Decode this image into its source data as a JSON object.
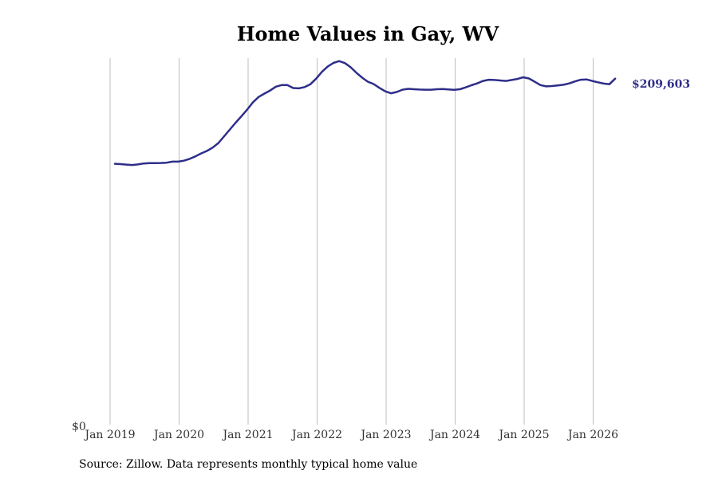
{
  "chart_data": {
    "type": "line",
    "title": "Home Values in Gay, WV",
    "xlabel": "",
    "ylabel": "",
    "y_tick_labels": [
      "$0"
    ],
    "x_tick_labels": [
      "Jan 2019",
      "Jan 2020",
      "Jan 2021",
      "Jan 2022",
      "Jan 2023",
      "Jan 2024",
      "Jan 2025",
      "Jan 2026"
    ],
    "x_tick_years": [
      2019,
      2020,
      2021,
      2022,
      2023,
      2024,
      2025,
      2026
    ],
    "ylim": [
      0,
      222000
    ],
    "grid": "vertical",
    "end_label": "$209,603",
    "line_color": "#2e2e8a",
    "series": [
      {
        "points": [
          [
            "2019-01",
            158000
          ],
          [
            "2019-02",
            157800
          ],
          [
            "2019-03",
            157500
          ],
          [
            "2019-04",
            157300
          ],
          [
            "2019-05",
            157600
          ],
          [
            "2019-06",
            158200
          ],
          [
            "2019-07",
            158400
          ],
          [
            "2019-08",
            158400
          ],
          [
            "2019-09",
            158500
          ],
          [
            "2019-10",
            158700
          ],
          [
            "2019-11",
            159300
          ],
          [
            "2019-12",
            159300
          ],
          [
            "2020-01",
            159900
          ],
          [
            "2020-02",
            161000
          ],
          [
            "2020-03",
            162500
          ],
          [
            "2020-04",
            164300
          ],
          [
            "2020-05",
            165800
          ],
          [
            "2020-06",
            167800
          ],
          [
            "2020-07",
            170600
          ],
          [
            "2020-08",
            174700
          ],
          [
            "2020-09",
            178800
          ],
          [
            "2020-10",
            182900
          ],
          [
            "2020-11",
            186800
          ],
          [
            "2020-12",
            190800
          ],
          [
            "2021-01",
            195200
          ],
          [
            "2021-02",
            198500
          ],
          [
            "2021-03",
            200500
          ],
          [
            "2021-04",
            202400
          ],
          [
            "2021-05",
            204700
          ],
          [
            "2021-06",
            205700
          ],
          [
            "2021-07",
            205700
          ],
          [
            "2021-08",
            203900
          ],
          [
            "2021-09",
            203700
          ],
          [
            "2021-10",
            204500
          ],
          [
            "2021-11",
            206200
          ],
          [
            "2021-12",
            209600
          ],
          [
            "2022-01",
            213700
          ],
          [
            "2022-02",
            216900
          ],
          [
            "2022-03",
            219100
          ],
          [
            "2022-04",
            220200
          ],
          [
            "2022-05",
            219000
          ],
          [
            "2022-06",
            216500
          ],
          [
            "2022-07",
            213100
          ],
          [
            "2022-08",
            210200
          ],
          [
            "2022-09",
            207700
          ],
          [
            "2022-10",
            206300
          ],
          [
            "2022-11",
            204000
          ],
          [
            "2022-12",
            201900
          ],
          [
            "2023-01",
            200700
          ],
          [
            "2023-02",
            201500
          ],
          [
            "2023-03",
            202900
          ],
          [
            "2023-04",
            203400
          ],
          [
            "2023-05",
            203200
          ],
          [
            "2023-06",
            203000
          ],
          [
            "2023-07",
            202900
          ],
          [
            "2023-08",
            202900
          ],
          [
            "2023-09",
            203200
          ],
          [
            "2023-10",
            203300
          ],
          [
            "2023-11",
            203100
          ],
          [
            "2023-12",
            202800
          ],
          [
            "2024-01",
            203200
          ],
          [
            "2024-02",
            204300
          ],
          [
            "2024-03",
            205600
          ],
          [
            "2024-04",
            206700
          ],
          [
            "2024-05",
            208200
          ],
          [
            "2024-06",
            208900
          ],
          [
            "2024-07",
            208800
          ],
          [
            "2024-08",
            208500
          ],
          [
            "2024-09",
            208200
          ],
          [
            "2024-10",
            208800
          ],
          [
            "2024-11",
            209400
          ],
          [
            "2024-12",
            210400
          ],
          [
            "2025-01",
            209700
          ],
          [
            "2025-02",
            207700
          ],
          [
            "2025-03",
            205700
          ],
          [
            "2025-04",
            204900
          ],
          [
            "2025-05",
            205100
          ],
          [
            "2025-06",
            205500
          ],
          [
            "2025-07",
            205900
          ],
          [
            "2025-08",
            206700
          ],
          [
            "2025-09",
            207900
          ],
          [
            "2025-10",
            208900
          ],
          [
            "2025-11",
            209100
          ],
          [
            "2025-12",
            208200
          ],
          [
            "2026-01",
            207400
          ],
          [
            "2026-02",
            206600
          ],
          [
            "2026-03",
            206200
          ],
          [
            "2026-04",
            209603
          ]
        ]
      }
    ]
  },
  "source_text": "Source: Zillow. Data represents monthly typical home value"
}
